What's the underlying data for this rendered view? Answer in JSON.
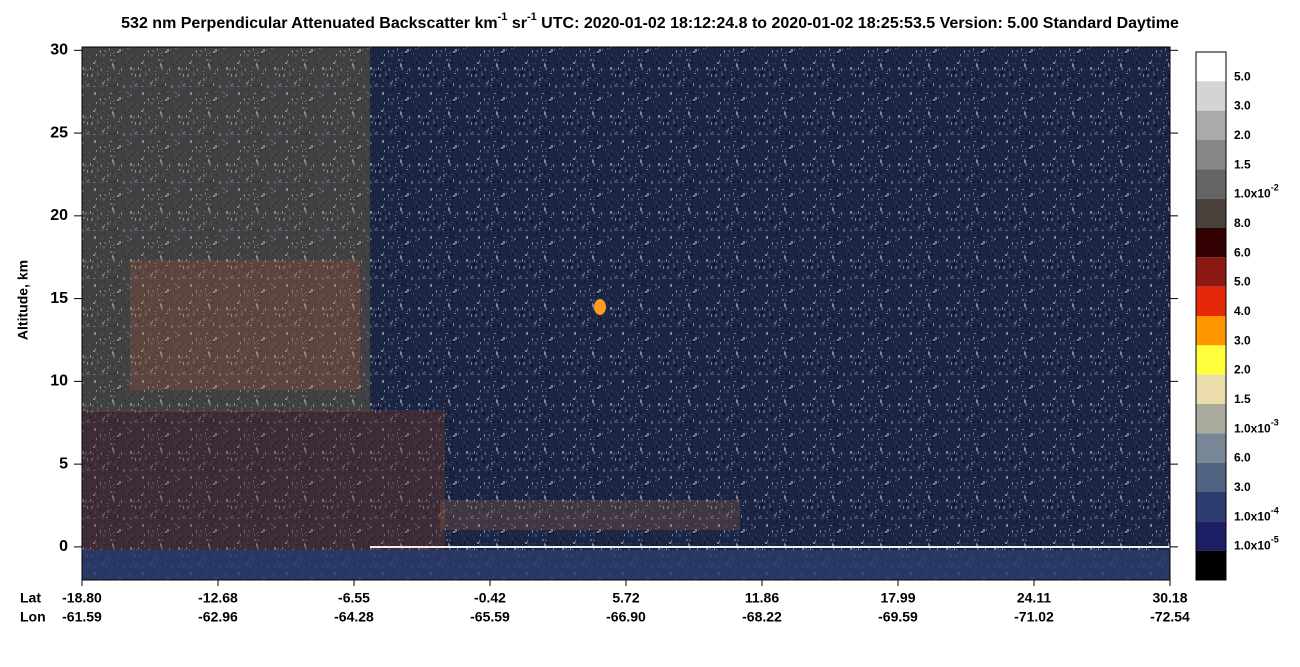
{
  "chart_data": {
    "type": "heatmap",
    "title_parts": [
      "532 nm Perpendicular Attenuated Backscatter km",
      "-1",
      " sr",
      "-1",
      "  UTC: 2020-01-02 18:12:24.8 to 2020-01-02 18:25:53.5  Version: 5.00 Standard Daytime"
    ],
    "y_label": "Altitude, km",
    "ylim": [
      -2,
      30.2
    ],
    "yticks": [
      0,
      5,
      10,
      15,
      20,
      25,
      30
    ],
    "x_row_titles": [
      "Lat",
      "Lon"
    ],
    "lat": [
      "-18.80",
      "-12.68",
      "-6.55",
      "-0.42",
      "5.72",
      "11.86",
      "17.99",
      "24.11",
      "30.18"
    ],
    "lon": [
      "-61.59",
      "-62.96",
      "-64.28",
      "-65.59",
      "-66.90",
      "-68.22",
      "-69.59",
      "-71.02",
      "-72.54"
    ],
    "colorbar": {
      "colors": [
        "#ffffff",
        "#d4d4d4",
        "#aaaaaa",
        "#878787",
        "#646464",
        "#4a403c",
        "#320000",
        "#8c1a12",
        "#e6280a",
        "#ff9600",
        "#ffff3c",
        "#ebdcac",
        "#aaaa9e",
        "#788796",
        "#506482",
        "#2d3c6e",
        "#1e1e64",
        "#000000"
      ],
      "labels": [
        {
          "text": "5.0"
        },
        {
          "text": "3.0"
        },
        {
          "text": "2.0"
        },
        {
          "text": "1.5"
        },
        {
          "text": "1.0x10",
          "sup": "-2"
        },
        {
          "text": "8.0"
        },
        {
          "text": "6.0"
        },
        {
          "text": "5.0"
        },
        {
          "text": "4.0"
        },
        {
          "text": "3.0"
        },
        {
          "text": "2.0"
        },
        {
          "text": "1.5"
        },
        {
          "text": "1.0x10",
          "sup": "-3"
        },
        {
          "text": "6.0"
        },
        {
          "text": "3.0"
        },
        {
          "text": "1.0x10",
          "sup": "-4"
        },
        {
          "text": "1.0x10",
          "sup": "-5"
        }
      ]
    }
  }
}
